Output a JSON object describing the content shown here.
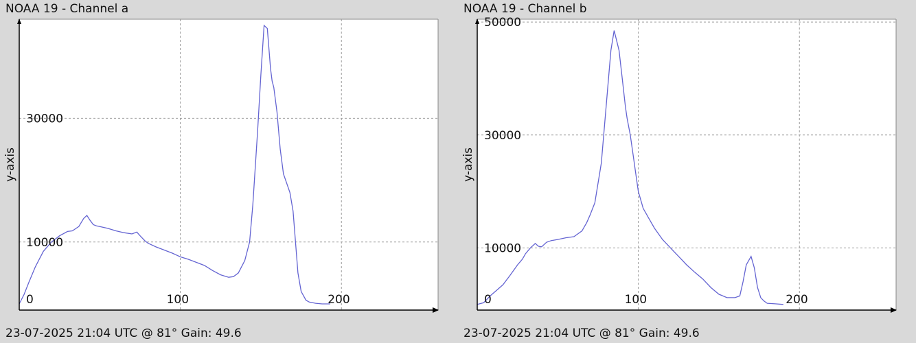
{
  "chart_data": [
    {
      "type": "line",
      "title": "NOAA 19 - Channel a",
      "footer": "23-07-2025 21:04 UTC @ 81° Gain: 49.6",
      "xlabel": "",
      "ylabel": "y-axis",
      "xlim": [
        0,
        260
      ],
      "ylim": [
        -1000,
        46000
      ],
      "x_ticks": [
        0,
        100,
        200
      ],
      "y_ticks": [
        10000,
        30000
      ],
      "grid": true,
      "line_color": "#6464d2",
      "series": [
        {
          "x": [
            0,
            3,
            6,
            10,
            15,
            20,
            25,
            30,
            33,
            37,
            40,
            42,
            44,
            46,
            48,
            50,
            55,
            60,
            65,
            70,
            73,
            75,
            78,
            80,
            85,
            90,
            95,
            100,
            105,
            110,
            115,
            120,
            125,
            130,
            133,
            136,
            140,
            143,
            145,
            148,
            150,
            152,
            154,
            156,
            157,
            158,
            160,
            162,
            164,
            166,
            168,
            170,
            173,
            175,
            178,
            180,
            184,
            188,
            193
          ],
          "y": [
            0,
            1500,
            3500,
            6000,
            8500,
            10000,
            11000,
            11700,
            11800,
            12500,
            13800,
            14300,
            13500,
            12800,
            12600,
            12500,
            12200,
            11800,
            11500,
            11300,
            11600,
            11000,
            10200,
            9800,
            9200,
            8700,
            8200,
            7600,
            7200,
            6700,
            6200,
            5400,
            4700,
            4300,
            4400,
            5000,
            7000,
            10000,
            16000,
            28000,
            37000,
            45000,
            44500,
            38000,
            36000,
            35000,
            31000,
            25000,
            21000,
            19500,
            18000,
            15000,
            5000,
            2000,
            600,
            300,
            100,
            0,
            0
          ]
        }
      ]
    },
    {
      "type": "line",
      "title": "NOAA 19 - Channel b",
      "footer": "23-07-2025 21:04 UTC @ 81° Gain: 49.6",
      "xlabel": "",
      "ylabel": "y-axis",
      "xlim": [
        0,
        260
      ],
      "ylim": [
        -1000,
        50500
      ],
      "x_ticks": [
        0,
        100,
        200
      ],
      "y_ticks": [
        10000,
        30000,
        50000
      ],
      "grid": true,
      "line_color": "#6464d2",
      "series": [
        {
          "x": [
            0,
            4,
            8,
            12,
            16,
            20,
            25,
            28,
            30,
            33,
            36,
            38,
            40,
            43,
            46,
            50,
            55,
            60,
            65,
            68,
            70,
            73,
            77,
            80,
            83,
            85,
            88,
            90,
            92,
            93,
            95,
            97,
            98,
            100,
            103,
            106,
            110,
            115,
            120,
            125,
            130,
            135,
            140,
            145,
            150,
            155,
            160,
            163,
            165,
            167,
            170,
            172,
            174,
            176,
            178,
            180,
            185,
            190
          ],
          "y": [
            0,
            300,
            1500,
            2500,
            3500,
            5000,
            7000,
            8000,
            9000,
            10000,
            10800,
            10300,
            10200,
            11000,
            11300,
            11500,
            11800,
            12000,
            13000,
            14500,
            15800,
            18000,
            25000,
            35000,
            45000,
            48500,
            45000,
            40000,
            35000,
            33000,
            30000,
            26000,
            24000,
            20000,
            17000,
            15500,
            13500,
            11500,
            10000,
            8500,
            7000,
            5700,
            4500,
            3000,
            1800,
            1200,
            1200,
            1500,
            4000,
            7000,
            8500,
            6500,
            3000,
            1200,
            600,
            200,
            100,
            0
          ]
        }
      ]
    }
  ]
}
